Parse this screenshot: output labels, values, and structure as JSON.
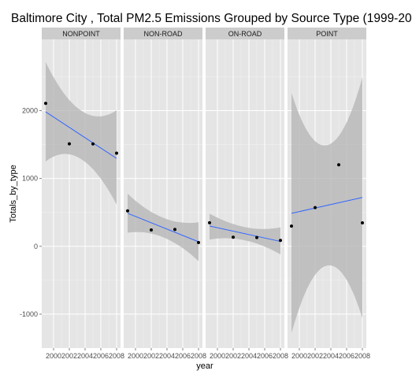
{
  "chart_data": {
    "type": "scatter",
    "title": "Baltimore City , Total PM2.5 Emissions Grouped by Source Type (1999-20",
    "xlabel": "year",
    "ylabel": "Totals_by_type",
    "xlim": [
      1998.5,
      2008.5
    ],
    "ylim": [
      -1500,
      3050
    ],
    "x_ticks": [
      2000,
      2002,
      2004,
      2006,
      2008
    ],
    "y_ticks": [
      -1000,
      0,
      1000,
      2000
    ],
    "grid": true,
    "trend": "linear fit with confidence band",
    "colors": {
      "panel_bg": "#e5e5e5",
      "strip_bg": "#cccccc",
      "grid_major": "#ffffff",
      "grid_minor": "#f2f2f2",
      "band": "#b3b3b3",
      "line": "#3366ff",
      "point": "#000000"
    },
    "facets": [
      {
        "name": "NONPOINT",
        "x": [
          1999,
          2002,
          2005,
          2008
        ],
        "y": [
          2107,
          1510,
          1509,
          1373
        ],
        "fit": [
          1981,
          1296
        ],
        "ci_lower": [
          1250,
          615
        ],
        "ci_upper": [
          2715,
          2005
        ]
      },
      {
        "name": "NON-ROAD",
        "x": [
          1999,
          2002,
          2005,
          2008
        ],
        "y": [
          522,
          241,
          249,
          55
        ],
        "fit": [
          487,
          67
        ],
        "ci_lower": [
          200,
          -220
        ],
        "ci_upper": [
          775,
          355
        ]
      },
      {
        "name": "ON-ROAD",
        "x": [
          1999,
          2002,
          2005,
          2008
        ],
        "y": [
          347,
          134,
          130,
          88
        ],
        "fit": [
          299,
          72
        ],
        "ci_lower": [
          100,
          -120
        ],
        "ci_upper": [
          480,
          280
        ]
      },
      {
        "name": "POINT",
        "x": [
          1999,
          2002,
          2005,
          2008
        ],
        "y": [
          297,
          570,
          1202,
          345
        ],
        "fit": [
          486,
          720
        ],
        "ci_lower": [
          -1280,
          -1060
        ],
        "ci_upper": [
          2260,
          2490
        ]
      }
    ]
  }
}
